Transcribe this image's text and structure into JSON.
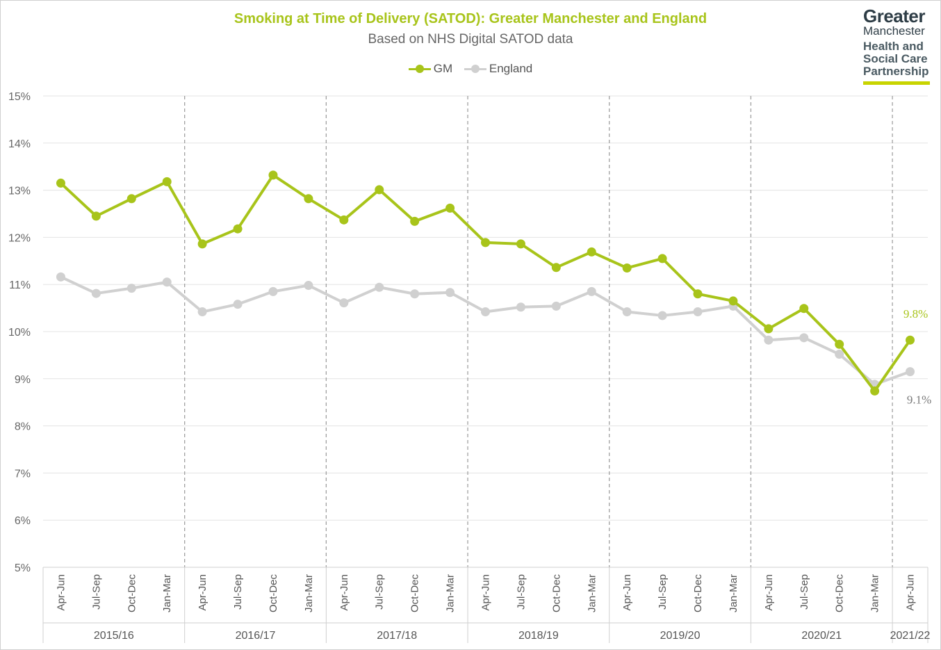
{
  "chart_data": {
    "type": "line",
    "title": "Smoking at Time of Delivery (SATOD): Greater Manchester and England",
    "subtitle": "Based on NHS Digital SATOD data",
    "ylim": [
      5,
      15
    ],
    "yticks": [
      "5%",
      "6%",
      "7%",
      "8%",
      "9%",
      "10%",
      "11%",
      "12%",
      "13%",
      "14%",
      "15%"
    ],
    "ytick_values": [
      5,
      6,
      7,
      8,
      9,
      10,
      11,
      12,
      13,
      14,
      15
    ],
    "categories": [
      "Apr-Jun",
      "Jul-Sep",
      "Oct-Dec",
      "Jan-Mar",
      "Apr-Jun",
      "Jul-Sep",
      "Oct-Dec",
      "Jan-Mar",
      "Apr-Jun",
      "Jul-Sep",
      "Oct-Dec",
      "Jan-Mar",
      "Apr-Jun",
      "Jul-Sep",
      "Oct-Dec",
      "Jan-Mar",
      "Apr-Jun",
      "Jul-Sep",
      "Oct-Dec",
      "Jan-Mar",
      "Apr-Jun",
      "Jul-Sep",
      "Oct-Dec",
      "Jan-Mar",
      "Apr-Jun"
    ],
    "groups": [
      {
        "label": "2015/16",
        "count": 4
      },
      {
        "label": "2016/17",
        "count": 4
      },
      {
        "label": "2017/18",
        "count": 4
      },
      {
        "label": "2018/19",
        "count": 4
      },
      {
        "label": "2019/20",
        "count": 4
      },
      {
        "label": "2020/21",
        "count": 4
      },
      {
        "label": "2021/22",
        "count": 1
      }
    ],
    "series": [
      {
        "name": "GM",
        "color": "#a8c41a",
        "label_color": "#a8c41a",
        "end_label": "9.8%",
        "values": [
          13.15,
          12.45,
          12.82,
          13.18,
          11.86,
          12.18,
          13.32,
          12.82,
          12.37,
          13.01,
          12.34,
          12.62,
          11.89,
          11.86,
          11.36,
          11.69,
          11.35,
          11.55,
          10.8,
          10.65,
          10.06,
          10.49,
          9.73,
          8.74,
          9.82
        ]
      },
      {
        "name": "England",
        "color": "#d0d0d0",
        "label_color": "#7a7a7a",
        "end_label": "9.1%",
        "values": [
          11.16,
          10.81,
          10.92,
          11.05,
          10.42,
          10.58,
          10.85,
          10.98,
          10.61,
          10.94,
          10.8,
          10.83,
          10.42,
          10.52,
          10.54,
          10.85,
          10.42,
          10.34,
          10.42,
          10.54,
          9.82,
          9.87,
          9.52,
          8.88,
          9.15
        ]
      }
    ],
    "legend_position": "top-center"
  },
  "logo": {
    "line1": "Greater",
    "line2": "Manchester",
    "line3": "Health and",
    "line4": "Social Care",
    "line5": "Partnership"
  }
}
